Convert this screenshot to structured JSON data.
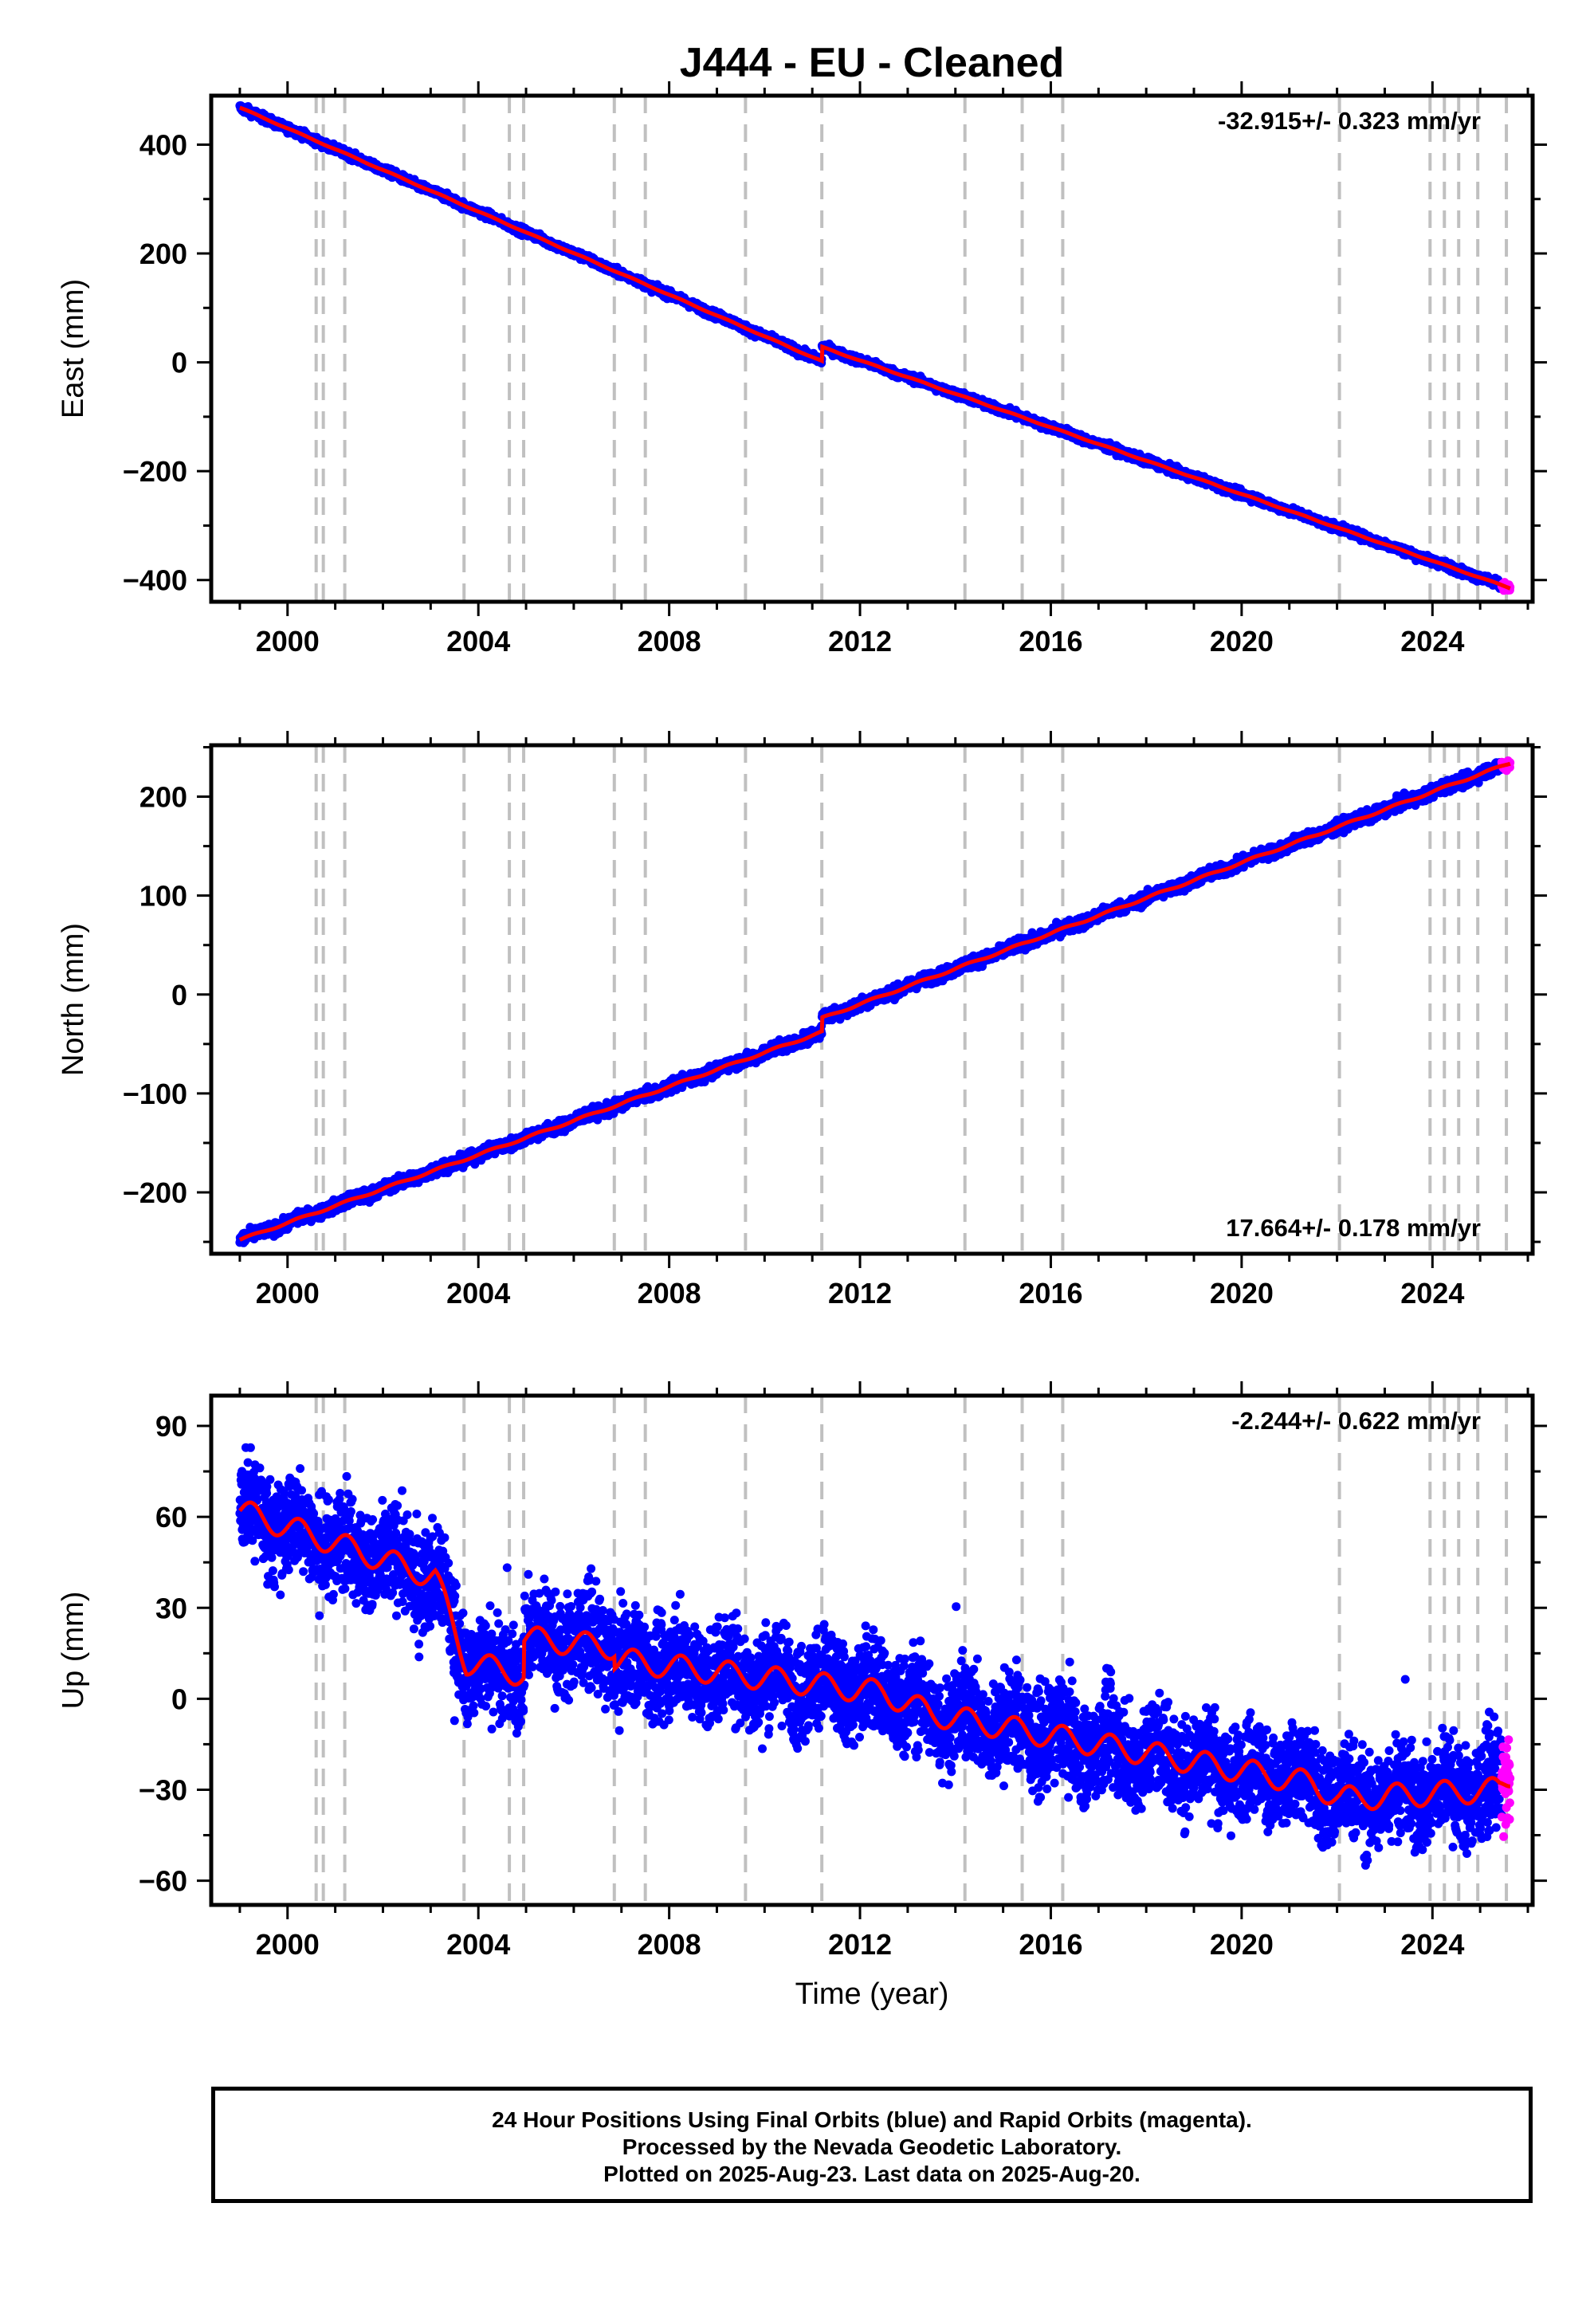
{
  "chart_data": {
    "type": "scatter",
    "title": "J444  - EU - Cleaned",
    "xlabel": "Time (year)",
    "xlim": [
      1998.4,
      2026.1
    ],
    "x_ticks": [
      "2000",
      "2004",
      "2008",
      "2012",
      "2016",
      "2020",
      "2024"
    ],
    "x_tick_values": [
      2000,
      2004,
      2008,
      2012,
      2016,
      2020,
      2024
    ],
    "x_minor_step": 1,
    "data_start": 1999.0,
    "data_end": 2025.63,
    "rapid_start": 2025.45,
    "vertical_lines": [
      2000.6,
      2000.75,
      2001.2,
      2003.7,
      2004.65,
      2004.95,
      2006.85,
      2007.5,
      2009.6,
      2011.2,
      2014.2,
      2015.4,
      2016.25,
      2022.05,
      2023.95,
      2024.25,
      2024.55,
      2024.95,
      2025.55
    ],
    "colors": {
      "final": "#0000ff",
      "rapid": "#ff00ff",
      "model": "#ff0000",
      "vlines": "#c0c0c0"
    },
    "panels": [
      {
        "name": "East",
        "ylabel": "East (mm)",
        "ylim": [
          -440,
          490
        ],
        "y_ticks": [
          "400",
          "200",
          "0",
          "−200",
          "−400"
        ],
        "y_tick_values": [
          400,
          200,
          0,
          -200,
          -400
        ],
        "y_minor_step": 100,
        "rate_label": "-32.915+/- 0.323 mm/yr",
        "rate_position": "top-right",
        "trend": [
          [
            1999.0,
            468
          ],
          [
            2011.2,
            2
          ],
          [
            2011.2,
            28
          ],
          [
            2025.63,
            -415
          ]
        ],
        "noise_mm": 3.5,
        "seasonal_mm": 0.8
      },
      {
        "name": "North",
        "ylabel": "North (mm)",
        "ylim": [
          -262,
          252
        ],
        "y_ticks": [
          "200",
          "100",
          "0",
          "−100",
          "−200"
        ],
        "y_tick_values": [
          200,
          100,
          0,
          -100,
          -200
        ],
        "y_minor_step": 50,
        "rate_label": "17.664+/- 0.178 mm/yr",
        "rate_position": "bottom-right",
        "trend": [
          [
            1999.0,
            -248
          ],
          [
            2011.2,
            -38
          ],
          [
            2011.2,
            -24
          ],
          [
            2025.63,
            234
          ]
        ],
        "noise_mm": 3,
        "seasonal_mm": 1
      },
      {
        "name": "Up",
        "ylabel": "Up (mm)",
        "ylim": [
          -68,
          100
        ],
        "y_ticks": [
          "90",
          "60",
          "30",
          "0",
          "−30",
          "−60"
        ],
        "y_tick_values": [
          90,
          60,
          30,
          0,
          -30,
          -60
        ],
        "y_minor_step": 15,
        "rate_label": "-2.244+/- 0.622 mm/yr",
        "rate_position": "top-right",
        "trend": [
          [
            1999.0,
            62
          ],
          [
            2003.1,
            40
          ],
          [
            2003.75,
            12
          ],
          [
            2004.95,
            8
          ],
          [
            2004.95,
            20
          ],
          [
            2006.85,
            17
          ],
          [
            2006.85,
            13
          ],
          [
            2012.5,
            2
          ],
          [
            2013.5,
            -5
          ],
          [
            2021.5,
            -28
          ],
          [
            2022.05,
            -33
          ],
          [
            2025.4,
            -30
          ],
          [
            2025.63,
            -26
          ]
        ],
        "noise_mm": 8,
        "seasonal_mm": 4
      }
    ]
  },
  "footer": {
    "line1": "24 Hour Positions Using Final Orbits (blue) and Rapid Orbits (magenta).",
    "line2": "Processed by the Nevada Geodetic Laboratory.",
    "line3": "Plotted on 2025-Aug-23. Last data on 2025-Aug-20."
  }
}
